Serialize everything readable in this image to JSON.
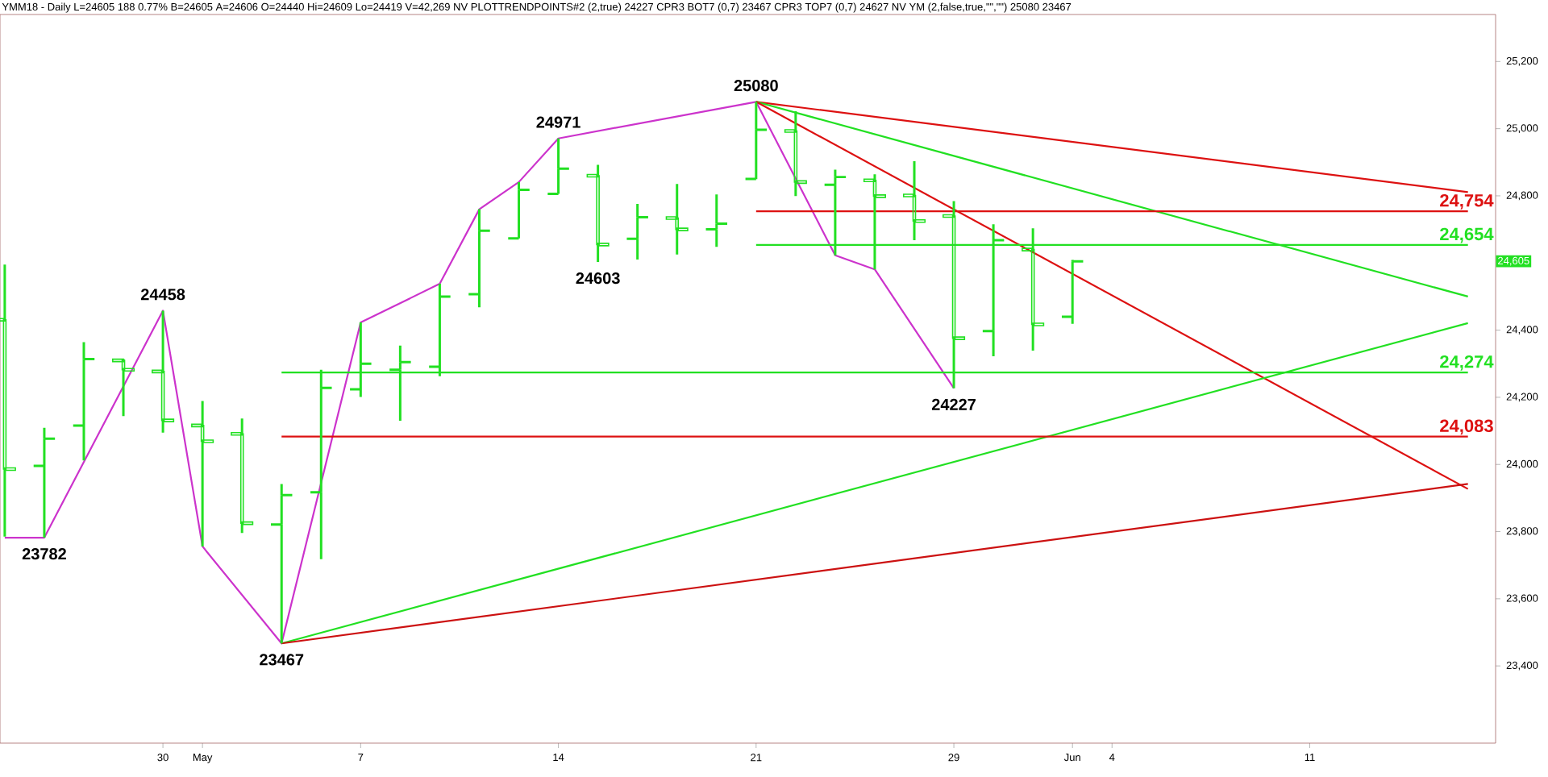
{
  "chart_data": {
    "type": "candlestick",
    "title": "YMM18 - Daily  L=24605  188  0.77%  B=24605  A=24606  O=24440  Hi=24609  Lo=24419  V=42,269  NV  PLOTTRENDPOINTS#2 (2,true)  24227  CPR3 BOT7 (0,7)  23467  CPR3 TOP7 (0,7)  24627  NV YM (2,false,true,\"\",\"\")  25080  23467",
    "categories": [
      null,
      null,
      null,
      null,
      "30",
      "May",
      null,
      null,
      null,
      "7",
      null,
      null,
      null,
      null,
      "14",
      null,
      null,
      null,
      null,
      "21",
      null,
      null,
      null,
      null,
      "29",
      null,
      null,
      "Jun",
      "4",
      null,
      null,
      null,
      null,
      "11",
      null,
      null,
      null,
      null
    ],
    "color": "#22e022",
    "ohlc": [
      [
        24431,
        24595,
        23785,
        23986
      ],
      [
        23996,
        24109,
        23782,
        24077
      ],
      [
        24116,
        24364,
        24012,
        24314
      ],
      [
        24310,
        24314,
        24144,
        24282
      ],
      [
        24277,
        24458,
        24095,
        24131
      ],
      [
        24116,
        24189,
        23756,
        24069
      ],
      [
        24091,
        24137,
        23796,
        23825
      ],
      [
        23821,
        23942,
        23467,
        23909
      ],
      [
        23917,
        24282,
        23718,
        24228
      ],
      [
        24224,
        24423,
        24201,
        24300
      ],
      [
        24282,
        24354,
        24130,
        24305
      ],
      [
        24291,
        24538,
        24263,
        24500
      ],
      [
        24507,
        24760,
        24468,
        24696
      ],
      [
        24673,
        24841,
        24673,
        24818
      ],
      [
        24806,
        24971,
        24806,
        24881
      ],
      [
        24860,
        24892,
        24603,
        24655
      ],
      [
        24672,
        24776,
        24610,
        24736
      ],
      [
        24734,
        24835,
        24625,
        24700
      ],
      [
        24700,
        24804,
        24648,
        24717
      ],
      [
        24850,
        25080,
        24850,
        24997
      ],
      [
        24993,
        25052,
        24799,
        24841
      ],
      [
        24833,
        24878,
        24623,
        24856
      ],
      [
        24846,
        24864,
        24581,
        24799
      ],
      [
        24801,
        24903,
        24668,
        24725
      ],
      [
        24740,
        24784,
        24227,
        24376
      ],
      [
        24397,
        24715,
        24322,
        24668
      ],
      [
        24640,
        24703,
        24339,
        24417
      ],
      [
        24440,
        24609,
        24419,
        24605
      ],
      null,
      null,
      null,
      null,
      null,
      null,
      null,
      null,
      null,
      null
    ],
    "series": [
      {
        "type": "line",
        "color": "#cc33cc",
        "values": [
          23782,
          23782,
          null,
          null,
          24458,
          23756,
          null,
          23467,
          null,
          24423,
          null,
          24538,
          24760,
          24841,
          24971,
          null,
          null,
          null,
          null,
          25080,
          null,
          24623,
          24581,
          null,
          24227,
          null,
          null,
          null,
          null,
          null,
          null,
          null,
          null,
          null,
          null,
          null,
          null,
          null
        ]
      },
      {
        "type": "line",
        "color": "#dd1111",
        "values": [
          null,
          null,
          null,
          null,
          null,
          null,
          null,
          null,
          null,
          null,
          null,
          null,
          null,
          null,
          null,
          null,
          null,
          null,
          null,
          25080,
          null,
          null,
          null,
          null,
          null,
          null,
          null,
          null,
          null,
          null,
          null,
          null,
          null,
          null,
          null,
          null,
          null,
          24811
        ]
      },
      {
        "type": "line",
        "color": "#22e022",
        "values": [
          null,
          null,
          null,
          null,
          null,
          null,
          null,
          null,
          null,
          null,
          null,
          null,
          null,
          null,
          null,
          null,
          null,
          null,
          null,
          25080,
          null,
          null,
          null,
          null,
          null,
          null,
          null,
          null,
          null,
          null,
          null,
          null,
          null,
          null,
          null,
          null,
          null,
          24500
        ]
      },
      {
        "type": "line",
        "color": "#dd1111",
        "values": [
          null,
          null,
          null,
          null,
          null,
          null,
          null,
          null,
          null,
          null,
          null,
          null,
          null,
          null,
          null,
          null,
          null,
          null,
          null,
          25080,
          null,
          null,
          null,
          null,
          null,
          null,
          null,
          null,
          null,
          null,
          null,
          null,
          null,
          null,
          null,
          null,
          null,
          23927
        ]
      },
      {
        "type": "line",
        "color": "#22e022",
        "values": [
          null,
          null,
          null,
          null,
          null,
          null,
          null,
          23467,
          null,
          null,
          null,
          null,
          null,
          null,
          null,
          null,
          null,
          null,
          null,
          null,
          null,
          null,
          null,
          null,
          null,
          null,
          null,
          null,
          null,
          null,
          null,
          null,
          null,
          null,
          null,
          null,
          null,
          24421
        ]
      },
      {
        "type": "line",
        "color": "#cc1111",
        "values": [
          null,
          null,
          null,
          null,
          null,
          null,
          null,
          23467,
          null,
          null,
          null,
          null,
          null,
          null,
          null,
          null,
          null,
          null,
          null,
          null,
          null,
          null,
          null,
          null,
          null,
          null,
          null,
          null,
          null,
          null,
          null,
          null,
          null,
          null,
          null,
          null,
          null,
          23942
        ]
      },
      {
        "type": "line",
        "name": "24,754",
        "color": "#dd1111",
        "values": [
          null,
          null,
          null,
          null,
          null,
          null,
          null,
          null,
          null,
          null,
          null,
          null,
          null,
          null,
          null,
          null,
          null,
          null,
          null,
          24754,
          null,
          null,
          null,
          null,
          null,
          null,
          null,
          null,
          null,
          null,
          null,
          null,
          null,
          null,
          null,
          null,
          null,
          24754
        ]
      },
      {
        "type": "line",
        "name": "24,654",
        "color": "#22e022",
        "values": [
          null,
          null,
          null,
          null,
          null,
          null,
          null,
          null,
          null,
          null,
          null,
          null,
          null,
          null,
          null,
          null,
          null,
          null,
          null,
          24654,
          null,
          null,
          null,
          null,
          null,
          null,
          null,
          null,
          null,
          null,
          null,
          null,
          null,
          null,
          null,
          null,
          null,
          24654
        ]
      },
      {
        "type": "line",
        "name": "24,274",
        "color": "#22e022",
        "values": [
          null,
          null,
          null,
          null,
          null,
          null,
          null,
          24274,
          null,
          null,
          null,
          null,
          null,
          null,
          null,
          null,
          null,
          null,
          null,
          null,
          null,
          null,
          null,
          null,
          null,
          null,
          null,
          null,
          null,
          null,
          null,
          null,
          null,
          null,
          null,
          null,
          null,
          24274
        ]
      },
      {
        "type": "line",
        "name": "24,083",
        "color": "#dd1111",
        "values": [
          null,
          null,
          null,
          null,
          null,
          null,
          null,
          24083,
          null,
          null,
          null,
          null,
          null,
          null,
          null,
          null,
          null,
          null,
          null,
          null,
          null,
          null,
          null,
          null,
          null,
          null,
          null,
          null,
          null,
          null,
          null,
          null,
          null,
          null,
          null,
          null,
          null,
          24083
        ]
      }
    ],
    "annotations": [
      {
        "text": "23782",
        "y": 23782
      },
      {
        "text": "24458",
        "y": 24458
      },
      {
        "text": "23467",
        "y": 23467
      },
      {
        "text": "24971",
        "y": 24971
      },
      {
        "text": "24603",
        "y": 24603
      },
      {
        "text": "25080",
        "y": 25080
      },
      {
        "text": "24227",
        "y": 24227
      },
      {
        "text": "24,605",
        "y": 24605
      }
    ],
    "ylim": [
      23170,
      25340
    ],
    "yticks": [
      {
        "value": 23400,
        "label": "23,400"
      },
      {
        "value": 23600,
        "label": "23,600"
      },
      {
        "value": 23800,
        "label": "23,800"
      },
      {
        "value": 24000,
        "label": "24,000"
      },
      {
        "value": 24200,
        "label": "24,200"
      },
      {
        "value": 24400,
        "label": "24,400"
      },
      {
        "value": 24800,
        "label": "24,800"
      },
      {
        "value": 25000,
        "label": "25,000"
      },
      {
        "value": 25200,
        "label": "25,200"
      }
    ],
    "grid": false
  }
}
